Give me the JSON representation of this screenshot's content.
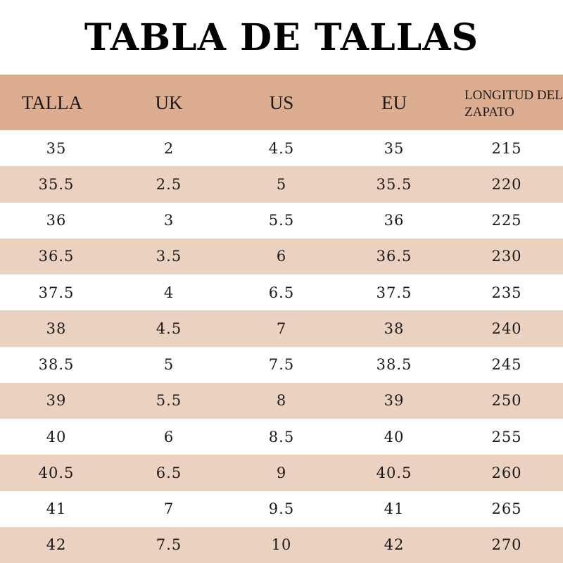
{
  "title": "TABLA DE TALLAS",
  "colors": {
    "header_bg": "#dcae8f",
    "band_bg": "#ebd1c0",
    "plain_bg": "#ffffff",
    "text": "#1a1a1a"
  },
  "table": {
    "headers": [
      "TALLA",
      "UK",
      "US",
      "EU",
      "LONGITUD DEL ZAPATO"
    ],
    "header_last_lines": [
      "LONGITUD DEL",
      "ZAPATO"
    ],
    "rows": [
      [
        "35",
        "2",
        "4.5",
        "35",
        "215"
      ],
      [
        "35.5",
        "2.5",
        "5",
        "35.5",
        "220"
      ],
      [
        "36",
        "3",
        "5.5",
        "36",
        "225"
      ],
      [
        "36.5",
        "3.5",
        "6",
        "36.5",
        "230"
      ],
      [
        "37.5",
        "4",
        "6.5",
        "37.5",
        "235"
      ],
      [
        "38",
        "4.5",
        "7",
        "38",
        "240"
      ],
      [
        "38.5",
        "5",
        "7.5",
        "38.5",
        "245"
      ],
      [
        "39",
        "5.5",
        "8",
        "39",
        "250"
      ],
      [
        "40",
        "6",
        "8.5",
        "40",
        "255"
      ],
      [
        "40.5",
        "6.5",
        "9",
        "40.5",
        "260"
      ],
      [
        "41",
        "7",
        "9.5",
        "41",
        "265"
      ],
      [
        "42",
        "7.5",
        "10",
        "42",
        "270"
      ]
    ]
  }
}
